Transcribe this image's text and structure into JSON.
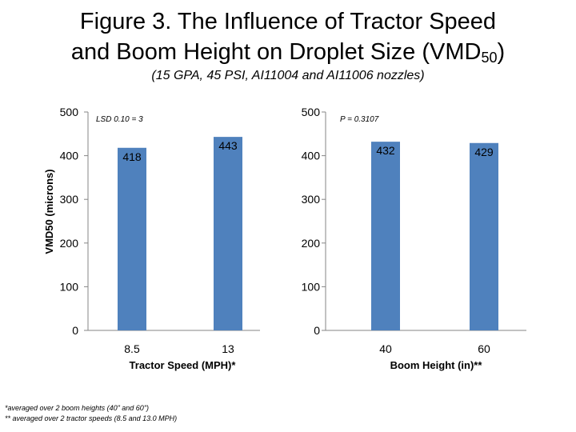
{
  "title_line1": "Figure 3. The Influence of Tractor Speed",
  "title_line2_pre": "and Boom Height on Droplet Size (VMD",
  "title_line2_sub": "50",
  "title_line2_post": ")",
  "subtitle": "(15 GPA, 45 PSI, AI11004 and AI11006 nozzles)",
  "footnotes": [
    "*averaged over 2 boom heights (40\" and 60\")",
    "** averaged over 2 tractor speeds (8.5 and 13.0 MPH)"
  ],
  "colors": {
    "bar": "#4f81bd"
  },
  "chart_data": [
    {
      "type": "bar",
      "categories": [
        "8.5",
        "13"
      ],
      "values": [
        418,
        443
      ],
      "data_labels": [
        "418",
        "443"
      ],
      "xlabel": "Tractor Speed (MPH)*",
      "ylabel": "VMD50 (microns)",
      "ylim": [
        0,
        500
      ],
      "yticks": [
        "0",
        "100",
        "200",
        "300",
        "400",
        "500"
      ],
      "annotation": "LSD 0.10 = 3",
      "grid": false
    },
    {
      "type": "bar",
      "categories": [
        "40",
        "60"
      ],
      "values": [
        432,
        429
      ],
      "data_labels": [
        "432",
        "429"
      ],
      "xlabel": "Boom Height (in)**",
      "ylabel": "",
      "ylim": [
        0,
        500
      ],
      "yticks": [
        "0",
        "100",
        "200",
        "300",
        "400",
        "500"
      ],
      "annotation": "P = 0.3107",
      "grid": false
    }
  ]
}
